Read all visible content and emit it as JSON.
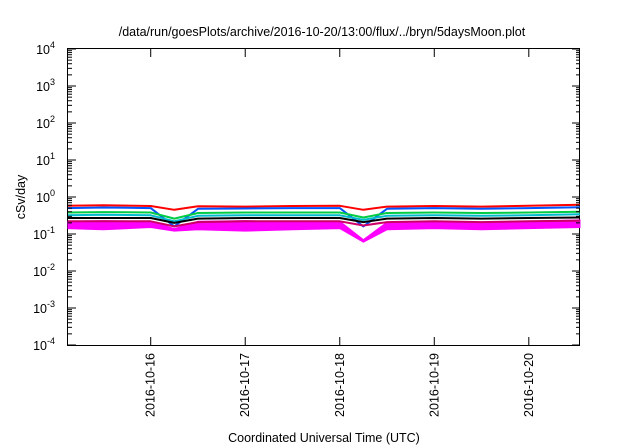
{
  "chart_data": {
    "type": "line",
    "title": "/data/run/goesPlots/archive/2016-10-20/13:00/flux/../bryn/5daysMoon.plot",
    "xlabel": "Coordinated Universal Time (UTC)",
    "ylabel": "cSv/day",
    "yscale": "log",
    "ylim": [
      0.0001,
      10000
    ],
    "y_ticks": [
      {
        "value": 0.0001,
        "base": "10",
        "exp": "-4"
      },
      {
        "value": 0.001,
        "base": "10",
        "exp": "-3"
      },
      {
        "value": 0.01,
        "base": "10",
        "exp": "-2"
      },
      {
        "value": 0.1,
        "base": "10",
        "exp": "-1"
      },
      {
        "value": 1,
        "base": "10",
        "exp": "0"
      },
      {
        "value": 10,
        "base": "10",
        "exp": "1"
      },
      {
        "value": 100,
        "base": "10",
        "exp": "2"
      },
      {
        "value": 1000,
        "base": "10",
        "exp": "3"
      },
      {
        "value": 10000,
        "base": "10",
        "exp": "4"
      }
    ],
    "xlim": [
      "2016-10-15T03:00",
      "2016-10-20T13:00"
    ],
    "x_ticks": [
      {
        "value": "2016-10-16T00:00",
        "label": "2016-10-16"
      },
      {
        "value": "2016-10-17T00:00",
        "label": "2016-10-17"
      },
      {
        "value": "2016-10-18T00:00",
        "label": "2016-10-18"
      },
      {
        "value": "2016-10-19T00:00",
        "label": "2016-10-19"
      },
      {
        "value": "2016-10-20T00:00",
        "label": "2016-10-20"
      }
    ],
    "grid": false,
    "legend": false,
    "series": [
      {
        "color": "#ff00ff",
        "style": "band",
        "x": [
          "2016-10-15T03:00",
          "2016-10-15T12:00",
          "2016-10-16T00:00",
          "2016-10-16T06:00",
          "2016-10-16T12:00",
          "2016-10-17T00:00",
          "2016-10-17T12:00",
          "2016-10-18T00:00",
          "2016-10-18T06:00",
          "2016-10-18T12:00",
          "2016-10-19T00:00",
          "2016-10-19T12:00",
          "2016-10-20T00:00",
          "2016-10-20T13:00"
        ],
        "y_upper": [
          0.22,
          0.23,
          0.22,
          0.14,
          0.22,
          0.23,
          0.21,
          0.22,
          0.07,
          0.21,
          0.22,
          0.21,
          0.22,
          0.24
        ],
        "y_lower": [
          0.14,
          0.13,
          0.15,
          0.12,
          0.13,
          0.12,
          0.13,
          0.14,
          0.06,
          0.13,
          0.14,
          0.13,
          0.14,
          0.15
        ]
      },
      {
        "color": "#ff0000",
        "x": [
          "2016-10-15T03:00",
          "2016-10-15T12:00",
          "2016-10-16T00:00",
          "2016-10-16T06:00",
          "2016-10-16T12:00",
          "2016-10-17T00:00",
          "2016-10-17T12:00",
          "2016-10-18T00:00",
          "2016-10-18T06:00",
          "2016-10-18T12:00",
          "2016-10-19T00:00",
          "2016-10-19T12:00",
          "2016-10-20T00:00",
          "2016-10-20T13:00"
        ],
        "y": [
          0.58,
          0.6,
          0.57,
          0.45,
          0.56,
          0.55,
          0.57,
          0.58,
          0.45,
          0.55,
          0.57,
          0.55,
          0.58,
          0.62
        ]
      },
      {
        "color": "#0055ff",
        "x": [
          "2016-10-15T03:00",
          "2016-10-15T12:00",
          "2016-10-16T00:00",
          "2016-10-16T06:00",
          "2016-10-16T12:00",
          "2016-10-17T00:00",
          "2016-10-17T12:00",
          "2016-10-18T00:00",
          "2016-10-18T06:00",
          "2016-10-18T12:00",
          "2016-10-19T00:00",
          "2016-10-19T12:00",
          "2016-10-20T00:00",
          "2016-10-20T13:00"
        ],
        "y": [
          0.5,
          0.52,
          0.5,
          0.16,
          0.48,
          0.49,
          0.5,
          0.5,
          0.16,
          0.48,
          0.5,
          0.48,
          0.5,
          0.53
        ]
      },
      {
        "color": "#00cc44",
        "x": [
          "2016-10-15T03:00",
          "2016-10-15T12:00",
          "2016-10-16T00:00",
          "2016-10-16T06:00",
          "2016-10-16T12:00",
          "2016-10-17T00:00",
          "2016-10-17T12:00",
          "2016-10-18T00:00",
          "2016-10-18T06:00",
          "2016-10-18T12:00",
          "2016-10-19T00:00",
          "2016-10-19T12:00",
          "2016-10-20T00:00",
          "2016-10-20T13:00"
        ],
        "y": [
          0.38,
          0.39,
          0.38,
          0.26,
          0.37,
          0.38,
          0.38,
          0.38,
          0.28,
          0.37,
          0.38,
          0.37,
          0.38,
          0.4
        ]
      },
      {
        "color": "#00bbcc",
        "x": [
          "2016-10-15T03:00",
          "2016-10-15T12:00",
          "2016-10-16T00:00",
          "2016-10-16T06:00",
          "2016-10-16T12:00",
          "2016-10-17T00:00",
          "2016-10-17T12:00",
          "2016-10-18T00:00",
          "2016-10-18T06:00",
          "2016-10-18T12:00",
          "2016-10-19T00:00",
          "2016-10-19T12:00",
          "2016-10-20T00:00",
          "2016-10-20T13:00"
        ],
        "y": [
          0.32,
          0.33,
          0.32,
          0.22,
          0.31,
          0.32,
          0.32,
          0.32,
          0.24,
          0.31,
          0.32,
          0.31,
          0.32,
          0.34
        ]
      },
      {
        "color": "#000000",
        "x": [
          "2016-10-15T03:00",
          "2016-10-15T12:00",
          "2016-10-16T00:00",
          "2016-10-16T06:00",
          "2016-10-16T12:00",
          "2016-10-17T00:00",
          "2016-10-17T12:00",
          "2016-10-18T00:00",
          "2016-10-18T06:00",
          "2016-10-18T12:00",
          "2016-10-19T00:00",
          "2016-10-19T12:00",
          "2016-10-20T00:00",
          "2016-10-20T13:00"
        ],
        "y": [
          0.27,
          0.27,
          0.27,
          0.2,
          0.26,
          0.27,
          0.27,
          0.27,
          0.21,
          0.26,
          0.27,
          0.26,
          0.27,
          0.28
        ]
      },
      {
        "color": "#cc0066",
        "x": [
          "2016-10-15T03:00",
          "2016-10-15T12:00",
          "2016-10-16T00:00",
          "2016-10-16T06:00",
          "2016-10-16T12:00",
          "2016-10-17T00:00",
          "2016-10-17T12:00",
          "2016-10-18T00:00",
          "2016-10-18T06:00",
          "2016-10-18T12:00",
          "2016-10-19T00:00",
          "2016-10-19T12:00",
          "2016-10-20T00:00",
          "2016-10-20T13:00"
        ],
        "y": [
          0.22,
          0.22,
          0.22,
          0.16,
          0.21,
          0.22,
          0.22,
          0.22,
          0.17,
          0.21,
          0.22,
          0.21,
          0.22,
          0.23
        ]
      }
    ]
  }
}
